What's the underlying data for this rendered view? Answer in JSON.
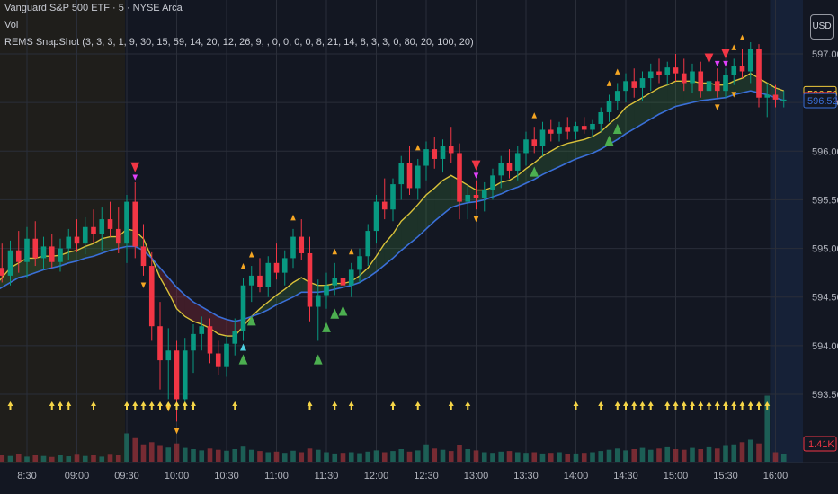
{
  "legend": {
    "symbol": "Vanguard S&P 500 ETF · 5 · NYSE Arca",
    "volume": "Vol",
    "indicator": "REMS SnapShot (3, 3, 3, 1, 9, 30, 15, 59, 14, 20, 12, 26, 9, , 0, 0, 0, 0, 8, 21, 14, 8, 3, 3, 0, 80, 20, 100, 20)"
  },
  "currency_button": "USD",
  "price_tags": [
    {
      "label": "596.59",
      "color": "#f0c93c",
      "value": 596.59
    },
    {
      "label": "596.53",
      "color": "#f23645",
      "value": 596.53
    },
    {
      "label": "596.52",
      "color": "#3a6fd8",
      "value": 596.52
    }
  ],
  "volume_tag": {
    "label": "1.41K",
    "color": "#f23645"
  },
  "colors": {
    "up": "#089981",
    "down": "#f23645",
    "ema_fast": "#d9c23a",
    "ema_slow": "#3a6fd8",
    "signal_up": "#f5a623",
    "signal_down": "#f5a623",
    "strong_up": "#4caf50",
    "strong_down": "#f23645",
    "magenta": "#e040fb",
    "cyan": "#4dd0e1",
    "arrow": "#f5d547"
  },
  "chart_data": {
    "type": "candlestick",
    "x_ticks": [
      "8:30",
      "09:00",
      "09:30",
      "10:00",
      "10:30",
      "11:00",
      "11:30",
      "12:00",
      "12:30",
      "13:00",
      "13:30",
      "14:00",
      "14:30",
      "15:00",
      "15:30",
      "16:00"
    ],
    "y_ticks": [
      593.5,
      594.0,
      594.5,
      595.0,
      595.5,
      596.0,
      596.5,
      597.0
    ],
    "y_range": [
      593.25,
      597.25
    ],
    "sessions": {
      "premarket_end": "09:30",
      "afterhours_start": "16:00"
    },
    "bars": [
      {
        "t": "08:10",
        "o": 594.55,
        "h": 594.92,
        "l": 594.4,
        "c": 594.8
      },
      {
        "t": "08:15",
        "o": 594.8,
        "h": 595.05,
        "l": 594.65,
        "c": 594.72
      },
      {
        "t": "08:20",
        "o": 594.72,
        "h": 595.08,
        "l": 594.62,
        "c": 594.98
      },
      {
        "t": "08:25",
        "o": 594.98,
        "h": 595.18,
        "l": 594.75,
        "c": 594.86
      },
      {
        "t": "08:30",
        "o": 594.86,
        "h": 595.22,
        "l": 594.7,
        "c": 595.1
      },
      {
        "t": "08:35",
        "o": 595.1,
        "h": 595.28,
        "l": 594.82,
        "c": 594.9
      },
      {
        "t": "08:40",
        "o": 594.9,
        "h": 595.12,
        "l": 594.78,
        "c": 595.02
      },
      {
        "t": "08:45",
        "o": 595.02,
        "h": 595.15,
        "l": 594.8,
        "c": 594.86
      },
      {
        "t": "08:50",
        "o": 594.86,
        "h": 595.1,
        "l": 594.76,
        "c": 595.0
      },
      {
        "t": "08:55",
        "o": 595.0,
        "h": 595.2,
        "l": 594.88,
        "c": 595.12
      },
      {
        "t": "09:00",
        "o": 595.12,
        "h": 595.3,
        "l": 594.96,
        "c": 595.05
      },
      {
        "t": "09:05",
        "o": 595.05,
        "h": 595.32,
        "l": 594.94,
        "c": 595.22
      },
      {
        "t": "09:10",
        "o": 595.22,
        "h": 595.4,
        "l": 595.05,
        "c": 595.15
      },
      {
        "t": "09:15",
        "o": 595.15,
        "h": 595.42,
        "l": 594.98,
        "c": 595.3
      },
      {
        "t": "09:20",
        "o": 595.3,
        "h": 595.48,
        "l": 595.12,
        "c": 595.2
      },
      {
        "t": "09:25",
        "o": 595.2,
        "h": 595.42,
        "l": 594.95,
        "c": 595.05
      },
      {
        "t": "09:30",
        "o": 595.05,
        "h": 595.55,
        "l": 594.85,
        "c": 595.48
      },
      {
        "t": "09:35",
        "o": 595.48,
        "h": 595.68,
        "l": 594.9,
        "c": 595.02
      },
      {
        "t": "09:40",
        "o": 595.02,
        "h": 595.25,
        "l": 594.72,
        "c": 594.82
      },
      {
        "t": "09:45",
        "o": 594.82,
        "h": 594.96,
        "l": 594.05,
        "c": 594.2
      },
      {
        "t": "09:50",
        "o": 594.2,
        "h": 594.45,
        "l": 593.55,
        "c": 593.85
      },
      {
        "t": "09:55",
        "o": 593.85,
        "h": 594.18,
        "l": 593.45,
        "c": 593.95
      },
      {
        "t": "10:00",
        "o": 593.95,
        "h": 594.05,
        "l": 593.22,
        "c": 593.45
      },
      {
        "t": "10:05",
        "o": 593.45,
        "h": 594.08,
        "l": 593.35,
        "c": 593.95
      },
      {
        "t": "10:10",
        "o": 593.95,
        "h": 594.22,
        "l": 593.72,
        "c": 594.12
      },
      {
        "t": "10:15",
        "o": 594.12,
        "h": 594.3,
        "l": 593.95,
        "c": 594.2
      },
      {
        "t": "10:20",
        "o": 594.2,
        "h": 594.28,
        "l": 593.82,
        "c": 593.92
      },
      {
        "t": "10:25",
        "o": 593.92,
        "h": 594.05,
        "l": 593.7,
        "c": 593.78
      },
      {
        "t": "10:30",
        "o": 593.78,
        "h": 594.1,
        "l": 593.68,
        "c": 594.02
      },
      {
        "t": "10:35",
        "o": 594.02,
        "h": 594.28,
        "l": 593.9,
        "c": 594.15
      },
      {
        "t": "10:40",
        "o": 594.15,
        "h": 594.7,
        "l": 594.05,
        "c": 594.62
      },
      {
        "t": "10:45",
        "o": 594.62,
        "h": 594.82,
        "l": 594.45,
        "c": 594.72
      },
      {
        "t": "10:50",
        "o": 594.72,
        "h": 594.9,
        "l": 594.55,
        "c": 594.6
      },
      {
        "t": "10:55",
        "o": 594.6,
        "h": 594.92,
        "l": 594.5,
        "c": 594.85
      },
      {
        "t": "11:00",
        "o": 594.85,
        "h": 595.05,
        "l": 594.68,
        "c": 594.75
      },
      {
        "t": "11:05",
        "o": 594.75,
        "h": 594.98,
        "l": 594.62,
        "c": 594.9
      },
      {
        "t": "11:10",
        "o": 594.9,
        "h": 595.2,
        "l": 594.8,
        "c": 595.12
      },
      {
        "t": "11:15",
        "o": 595.12,
        "h": 595.3,
        "l": 594.88,
        "c": 594.95
      },
      {
        "t": "11:20",
        "o": 594.95,
        "h": 595.12,
        "l": 594.25,
        "c": 594.4
      },
      {
        "t": "11:25",
        "o": 594.4,
        "h": 594.68,
        "l": 594.05,
        "c": 594.52
      },
      {
        "t": "11:30",
        "o": 594.52,
        "h": 594.75,
        "l": 594.38,
        "c": 594.62
      },
      {
        "t": "11:35",
        "o": 594.62,
        "h": 594.85,
        "l": 594.52,
        "c": 594.7
      },
      {
        "t": "11:40",
        "o": 594.7,
        "h": 594.88,
        "l": 594.55,
        "c": 594.62
      },
      {
        "t": "11:45",
        "o": 594.62,
        "h": 594.85,
        "l": 594.5,
        "c": 594.78
      },
      {
        "t": "11:50",
        "o": 594.78,
        "h": 595.0,
        "l": 594.65,
        "c": 594.92
      },
      {
        "t": "11:55",
        "o": 594.92,
        "h": 595.25,
        "l": 594.82,
        "c": 595.18
      },
      {
        "t": "12:00",
        "o": 595.18,
        "h": 595.55,
        "l": 595.05,
        "c": 595.48
      },
      {
        "t": "12:05",
        "o": 595.48,
        "h": 595.72,
        "l": 595.3,
        "c": 595.4
      },
      {
        "t": "12:10",
        "o": 595.4,
        "h": 595.72,
        "l": 595.28,
        "c": 595.66
      },
      {
        "t": "12:15",
        "o": 595.66,
        "h": 595.95,
        "l": 595.5,
        "c": 595.88
      },
      {
        "t": "12:20",
        "o": 595.88,
        "h": 596.05,
        "l": 595.55,
        "c": 595.62
      },
      {
        "t": "12:25",
        "o": 595.62,
        "h": 595.92,
        "l": 595.5,
        "c": 595.85
      },
      {
        "t": "12:30",
        "o": 595.85,
        "h": 596.1,
        "l": 595.7,
        "c": 596.02
      },
      {
        "t": "12:35",
        "o": 596.02,
        "h": 596.15,
        "l": 595.82,
        "c": 595.92
      },
      {
        "t": "12:40",
        "o": 595.92,
        "h": 596.12,
        "l": 595.78,
        "c": 596.05
      },
      {
        "t": "12:45",
        "o": 596.05,
        "h": 596.25,
        "l": 595.88,
        "c": 595.98
      },
      {
        "t": "12:50",
        "o": 595.98,
        "h": 596.08,
        "l": 595.3,
        "c": 595.48
      },
      {
        "t": "12:55",
        "o": 595.48,
        "h": 595.65,
        "l": 595.3,
        "c": 595.55
      },
      {
        "t": "13:00",
        "o": 595.55,
        "h": 595.7,
        "l": 595.4,
        "c": 595.52
      },
      {
        "t": "13:05",
        "o": 595.52,
        "h": 595.68,
        "l": 595.38,
        "c": 595.6
      },
      {
        "t": "13:10",
        "o": 595.6,
        "h": 595.82,
        "l": 595.5,
        "c": 595.75
      },
      {
        "t": "13:15",
        "o": 595.75,
        "h": 595.95,
        "l": 595.62,
        "c": 595.88
      },
      {
        "t": "13:20",
        "o": 595.88,
        "h": 596.02,
        "l": 595.72,
        "c": 595.8
      },
      {
        "t": "13:25",
        "o": 595.8,
        "h": 596.05,
        "l": 595.7,
        "c": 595.98
      },
      {
        "t": "13:30",
        "o": 595.98,
        "h": 596.2,
        "l": 595.85,
        "c": 596.12
      },
      {
        "t": "13:35",
        "o": 596.12,
        "h": 596.25,
        "l": 595.98,
        "c": 596.05
      },
      {
        "t": "13:40",
        "o": 596.05,
        "h": 596.3,
        "l": 595.95,
        "c": 596.22
      },
      {
        "t": "13:45",
        "o": 596.22,
        "h": 596.32,
        "l": 596.1,
        "c": 596.18
      },
      {
        "t": "13:50",
        "o": 596.18,
        "h": 596.3,
        "l": 596.1,
        "c": 596.25
      },
      {
        "t": "13:55",
        "o": 596.25,
        "h": 596.35,
        "l": 596.12,
        "c": 596.2
      },
      {
        "t": "14:00",
        "o": 596.2,
        "h": 596.3,
        "l": 596.12,
        "c": 596.26
      },
      {
        "t": "14:05",
        "o": 596.26,
        "h": 596.35,
        "l": 596.18,
        "c": 596.22
      },
      {
        "t": "14:10",
        "o": 596.22,
        "h": 596.32,
        "l": 596.15,
        "c": 596.28
      },
      {
        "t": "14:15",
        "o": 596.28,
        "h": 596.45,
        "l": 596.2,
        "c": 596.4
      },
      {
        "t": "14:20",
        "o": 596.4,
        "h": 596.58,
        "l": 596.3,
        "c": 596.52
      },
      {
        "t": "14:25",
        "o": 596.52,
        "h": 596.7,
        "l": 596.42,
        "c": 596.62
      },
      {
        "t": "14:30",
        "o": 596.62,
        "h": 596.8,
        "l": 596.5,
        "c": 596.72
      },
      {
        "t": "14:35",
        "o": 596.72,
        "h": 596.85,
        "l": 596.55,
        "c": 596.65
      },
      {
        "t": "14:40",
        "o": 596.65,
        "h": 596.82,
        "l": 596.52,
        "c": 596.75
      },
      {
        "t": "14:45",
        "o": 596.75,
        "h": 596.9,
        "l": 596.62,
        "c": 596.82
      },
      {
        "t": "14:50",
        "o": 596.82,
        "h": 596.95,
        "l": 596.7,
        "c": 596.78
      },
      {
        "t": "14:55",
        "o": 596.78,
        "h": 596.92,
        "l": 596.68,
        "c": 596.86
      },
      {
        "t": "15:00",
        "o": 596.86,
        "h": 597.0,
        "l": 596.72,
        "c": 596.8
      },
      {
        "t": "15:05",
        "o": 596.8,
        "h": 596.95,
        "l": 596.62,
        "c": 596.7
      },
      {
        "t": "15:10",
        "o": 596.7,
        "h": 596.9,
        "l": 596.6,
        "c": 596.82
      },
      {
        "t": "15:15",
        "o": 596.82,
        "h": 596.92,
        "l": 596.55,
        "c": 596.62
      },
      {
        "t": "15:20",
        "o": 596.62,
        "h": 596.8,
        "l": 596.5,
        "c": 596.72
      },
      {
        "t": "15:25",
        "o": 596.72,
        "h": 596.85,
        "l": 596.55,
        "c": 596.62
      },
      {
        "t": "15:30",
        "o": 596.62,
        "h": 596.85,
        "l": 596.55,
        "c": 596.78
      },
      {
        "t": "15:35",
        "o": 596.78,
        "h": 596.95,
        "l": 596.68,
        "c": 596.88
      },
      {
        "t": "15:40",
        "o": 596.88,
        "h": 597.05,
        "l": 596.75,
        "c": 596.82
      },
      {
        "t": "15:45",
        "o": 596.82,
        "h": 597.12,
        "l": 596.7,
        "c": 597.05
      },
      {
        "t": "15:50",
        "o": 597.05,
        "h": 597.1,
        "l": 596.45,
        "c": 596.55
      },
      {
        "t": "15:55",
        "o": 596.55,
        "h": 596.7,
        "l": 596.35,
        "c": 596.58
      },
      {
        "t": "16:00",
        "o": 596.58,
        "h": 596.68,
        "l": 596.45,
        "c": 596.53
      },
      {
        "t": "16:05",
        "o": 596.53,
        "h": 596.62,
        "l": 596.45,
        "c": 596.53
      }
    ],
    "ema_fast": [
      594.6,
      594.7,
      594.8,
      594.85,
      594.9,
      594.9,
      594.92,
      594.92,
      594.93,
      594.96,
      594.98,
      595.02,
      595.05,
      595.1,
      595.12,
      595.12,
      595.2,
      595.18,
      595.1,
      594.9,
      594.7,
      594.55,
      594.38,
      594.3,
      594.25,
      594.22,
      594.18,
      594.12,
      594.1,
      594.1,
      594.2,
      594.3,
      594.38,
      594.45,
      594.52,
      594.58,
      594.65,
      594.7,
      594.65,
      594.62,
      594.62,
      594.64,
      594.64,
      594.66,
      594.72,
      594.8,
      594.92,
      595.05,
      595.15,
      595.28,
      595.36,
      595.45,
      595.55,
      595.62,
      595.7,
      595.75,
      595.7,
      595.65,
      595.6,
      595.6,
      595.63,
      595.68,
      595.7,
      595.75,
      595.82,
      595.88,
      595.95,
      596.0,
      596.05,
      596.08,
      596.1,
      596.12,
      596.15,
      596.2,
      596.28,
      596.35,
      596.45,
      596.5,
      596.55,
      596.6,
      596.65,
      596.68,
      596.72,
      596.72,
      596.72,
      596.7,
      596.7,
      596.68,
      596.68,
      596.72,
      596.75,
      596.8,
      596.75,
      596.7,
      596.65,
      596.62
    ],
    "ema_slow": [
      594.55,
      594.6,
      594.65,
      594.7,
      594.72,
      594.75,
      594.78,
      594.8,
      594.82,
      594.85,
      594.87,
      594.9,
      594.92,
      594.95,
      594.98,
      595.0,
      595.02,
      595.02,
      594.98,
      594.9,
      594.8,
      594.7,
      594.6,
      594.52,
      594.45,
      594.4,
      594.35,
      594.3,
      594.27,
      594.25,
      594.27,
      594.3,
      594.33,
      594.37,
      594.42,
      594.46,
      594.5,
      594.55,
      594.55,
      594.55,
      594.56,
      594.58,
      594.6,
      594.62,
      594.65,
      594.7,
      594.76,
      594.83,
      594.9,
      594.98,
      595.05,
      595.12,
      595.2,
      595.28,
      595.35,
      595.42,
      595.45,
      595.47,
      595.48,
      595.5,
      595.53,
      595.56,
      595.6,
      595.63,
      595.67,
      595.71,
      595.76,
      595.8,
      595.84,
      595.88,
      595.92,
      595.95,
      595.98,
      596.02,
      596.07,
      596.12,
      596.18,
      596.23,
      596.28,
      596.33,
      596.38,
      596.42,
      596.46,
      596.48,
      596.5,
      596.52,
      596.53,
      596.54,
      596.55,
      596.58,
      596.6,
      596.62,
      596.6,
      596.58,
      596.55,
      596.52
    ],
    "volume": [
      0.22,
      0.2,
      0.18,
      0.24,
      0.16,
      0.2,
      0.18,
      0.15,
      0.2,
      0.17,
      0.22,
      0.18,
      0.2,
      0.16,
      0.22,
      0.2,
      0.9,
      0.75,
      0.55,
      0.62,
      0.5,
      0.45,
      0.58,
      0.44,
      0.4,
      0.36,
      0.42,
      0.38,
      0.35,
      0.4,
      0.48,
      0.38,
      0.34,
      0.3,
      0.32,
      0.28,
      0.35,
      0.3,
      0.42,
      0.38,
      0.3,
      0.26,
      0.28,
      0.3,
      0.27,
      0.32,
      0.36,
      0.3,
      0.34,
      0.4,
      0.32,
      0.36,
      0.55,
      0.42,
      0.38,
      0.34,
      0.52,
      0.4,
      0.36,
      0.3,
      0.28,
      0.32,
      0.34,
      0.3,
      0.28,
      0.3,
      0.26,
      0.28,
      0.3,
      0.24,
      0.26,
      0.28,
      0.3,
      0.34,
      0.38,
      0.42,
      0.36,
      0.4,
      0.44,
      0.38,
      0.42,
      0.46,
      0.4,
      0.38,
      0.44,
      0.4,
      0.46,
      0.42,
      0.5,
      0.55,
      0.62,
      0.7,
      0.58,
      2.1,
      0.3,
      0.25
    ],
    "volume_axis_label": "1.41K"
  }
}
